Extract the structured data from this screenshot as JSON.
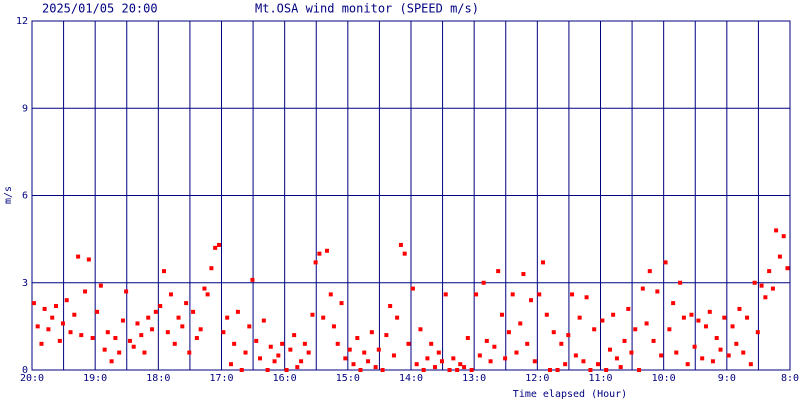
{
  "chart_data": {
    "type": "scatter",
    "title": "Mt.OSA wind monitor (SPEED m/s)",
    "subtitle": "2025/01/05 20:00",
    "x_label": "Time elapsed (Hour)",
    "y_label": "m/s",
    "color": "#ff0000",
    "grid": true,
    "xlim": [
      0,
      12
    ],
    "ylim": [
      0,
      12
    ],
    "yticks": [
      0,
      3,
      6,
      9,
      12
    ],
    "xticks": [
      {
        "value": 0,
        "label": "20:0"
      },
      {
        "value": 1,
        "label": "19:0"
      },
      {
        "value": 2,
        "label": "18:0"
      },
      {
        "value": 3,
        "label": "17:0"
      },
      {
        "value": 4,
        "label": "16:0"
      },
      {
        "value": 5,
        "label": "15:0"
      },
      {
        "value": 6,
        "label": "14:0"
      },
      {
        "value": 7,
        "label": "13:0"
      },
      {
        "value": 8,
        "label": "12:0"
      },
      {
        "value": 9,
        "label": "11:0"
      },
      {
        "value": 10,
        "label": "10:0"
      },
      {
        "value": 11,
        "label": "9:0"
      },
      {
        "value": 12,
        "label": "8:0"
      }
    ],
    "x_minor_grid": [
      0.5,
      1.5,
      2.5,
      3.5,
      4.5,
      5.5,
      6.5,
      7.5,
      8.5,
      9.5,
      10.5,
      11.5
    ],
    "x": [
      0.03,
      0.09,
      0.15,
      0.2,
      0.26,
      0.32,
      0.38,
      0.44,
      0.49,
      0.55,
      0.61,
      0.67,
      0.73,
      0.78,
      0.84,
      0.9,
      0.96,
      1.03,
      1.09,
      1.15,
      1.2,
      1.26,
      1.32,
      1.38,
      1.44,
      1.49,
      1.55,
      1.61,
      1.67,
      1.73,
      1.78,
      1.84,
      1.9,
      1.96,
      2.03,
      2.09,
      2.15,
      2.2,
      2.26,
      2.32,
      2.38,
      2.44,
      2.49,
      2.55,
      2.61,
      2.67,
      2.73,
      2.78,
      2.84,
      2.9,
      2.96,
      3.03,
      3.09,
      3.15,
      3.2,
      3.26,
      3.32,
      3.38,
      3.44,
      3.49,
      3.55,
      3.61,
      3.67,
      3.73,
      3.78,
      3.84,
      3.9,
      3.96,
      4.03,
      4.09,
      4.15,
      4.2,
      4.26,
      4.32,
      4.38,
      4.44,
      4.49,
      4.55,
      4.61,
      4.67,
      4.73,
      4.78,
      4.84,
      4.9,
      4.96,
      5.03,
      5.09,
      5.15,
      5.2,
      5.26,
      5.32,
      5.38,
      5.44,
      5.49,
      5.55,
      5.61,
      5.67,
      5.73,
      5.78,
      5.84,
      5.9,
      5.96,
      6.03,
      6.09,
      6.15,
      6.2,
      6.26,
      6.32,
      6.38,
      6.44,
      6.49,
      6.55,
      6.61,
      6.67,
      6.73,
      6.78,
      6.84,
      6.9,
      6.96,
      7.03,
      7.09,
      7.15,
      7.2,
      7.26,
      7.32,
      7.38,
      7.44,
      7.49,
      7.55,
      7.61,
      7.67,
      7.73,
      7.78,
      7.84,
      7.9,
      7.96,
      8.03,
      8.09,
      8.15,
      8.2,
      8.26,
      8.32,
      8.38,
      8.44,
      8.49,
      8.55,
      8.61,
      8.67,
      8.73,
      8.78,
      8.84,
      8.9,
      8.96,
      9.03,
      9.09,
      9.15,
      9.2,
      9.26,
      9.32,
      9.38,
      9.44,
      9.49,
      9.55,
      9.61,
      9.67,
      9.73,
      9.78,
      9.84,
      9.9,
      9.96,
      10.03,
      10.09,
      10.15,
      10.2,
      10.26,
      10.32,
      10.38,
      10.44,
      10.49,
      10.55,
      10.61,
      10.67,
      10.73,
      10.78,
      10.84,
      10.9,
      10.96,
      11.03,
      11.09,
      11.15,
      11.2,
      11.26,
      11.32,
      11.38,
      11.44,
      11.49,
      11.55,
      11.61,
      11.67,
      11.73,
      11.78,
      11.84,
      11.9,
      11.96
    ],
    "values": [
      2.3,
      1.5,
      0.9,
      2.1,
      1.4,
      1.8,
      2.2,
      1.0,
      1.6,
      2.4,
      1.3,
      1.9,
      3.9,
      1.2,
      2.7,
      3.8,
      1.1,
      2.0,
      2.9,
      0.7,
      1.3,
      0.3,
      1.1,
      0.6,
      1.7,
      2.7,
      1.0,
      0.8,
      1.6,
      1.2,
      0.6,
      1.8,
      1.4,
      2.0,
      2.2,
      3.4,
      1.3,
      2.6,
      0.9,
      1.8,
      1.5,
      2.3,
      0.6,
      2.0,
      1.1,
      1.4,
      2.8,
      2.6,
      3.5,
      4.2,
      4.3,
      1.3,
      1.8,
      0.2,
      0.9,
      2.0,
      0.0,
      0.6,
      1.5,
      3.1,
      1.0,
      0.4,
      1.7,
      0.0,
      0.8,
      0.3,
      0.5,
      0.9,
      0.0,
      0.7,
      1.2,
      0.1,
      0.3,
      0.9,
      0.6,
      1.9,
      3.7,
      4.0,
      1.8,
      4.1,
      2.6,
      1.5,
      0.9,
      2.3,
      0.4,
      0.7,
      0.2,
      1.1,
      0.0,
      0.6,
      0.3,
      1.3,
      0.1,
      0.7,
      0.0,
      1.2,
      2.2,
      0.5,
      1.8,
      4.3,
      4.0,
      0.9,
      2.8,
      0.2,
      1.4,
      0.0,
      0.4,
      0.9,
      0.1,
      0.6,
      0.3,
      2.6,
      0.0,
      0.4,
      0.0,
      0.2,
      0.1,
      1.1,
      0.0,
      2.6,
      0.5,
      3.0,
      1.0,
      0.3,
      0.8,
      3.4,
      1.9,
      0.4,
      1.3,
      2.6,
      0.6,
      1.6,
      3.3,
      0.9,
      2.4,
      0.3,
      2.6,
      3.7,
      1.9,
      0.0,
      1.3,
      0.0,
      0.9,
      0.2,
      1.2,
      2.6,
      0.5,
      1.8,
      0.3,
      2.5,
      0.0,
      1.4,
      0.2,
      1.7,
      0.0,
      0.7,
      1.9,
      0.4,
      0.1,
      1.0,
      2.1,
      0.6,
      1.4,
      0.0,
      2.8,
      1.6,
      3.4,
      1.0,
      2.7,
      0.5,
      3.7,
      1.4,
      2.3,
      0.6,
      3.0,
      1.8,
      0.2,
      1.9,
      0.8,
      1.7,
      0.4,
      1.5,
      2.0,
      0.3,
      1.1,
      0.7,
      1.8,
      0.5,
      1.5,
      0.9,
      2.1,
      0.6,
      1.8,
      0.2,
      3.0,
      1.3,
      2.9,
      2.5,
      3.4,
      2.8,
      4.8,
      3.9,
      4.6,
      3.5
    ]
  }
}
